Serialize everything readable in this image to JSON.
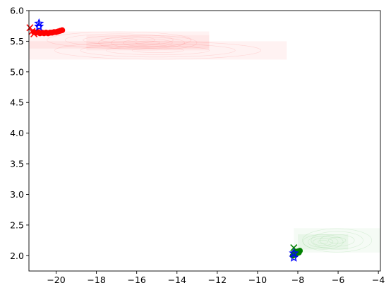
{
  "chart_data": {
    "type": "scatter",
    "title": "",
    "xlabel": "",
    "ylabel": "",
    "xlim": [
      -21.35,
      -3.9
    ],
    "ylim": [
      1.75,
      6.0
    ],
    "grid": false,
    "x_ticks": [
      {
        "value": -20,
        "label": "−20"
      },
      {
        "value": -18,
        "label": "−18"
      },
      {
        "value": -16,
        "label": "−16"
      },
      {
        "value": -14,
        "label": "−14"
      },
      {
        "value": -12,
        "label": "−12"
      },
      {
        "value": -10,
        "label": "−10"
      },
      {
        "value": -8,
        "label": "−8"
      },
      {
        "value": -6,
        "label": "−6"
      },
      {
        "value": -4,
        "label": "−4"
      }
    ],
    "y_ticks": [
      {
        "value": 2.0,
        "label": "2.0"
      },
      {
        "value": 2.5,
        "label": "2.5"
      },
      {
        "value": 3.0,
        "label": "3.0"
      },
      {
        "value": 3.5,
        "label": "3.5"
      },
      {
        "value": 4.0,
        "label": "4.0"
      },
      {
        "value": 4.5,
        "label": "4.5"
      },
      {
        "value": 5.0,
        "label": "5.0"
      },
      {
        "value": 5.5,
        "label": "5.5"
      },
      {
        "value": 6.0,
        "label": "6.0"
      }
    ],
    "colors": {
      "red": "#ff0000",
      "blue": "#0000ff",
      "green": "#008000",
      "red_fill": "#ff0000",
      "green_fill": "#00a000"
    },
    "density_regions": [
      {
        "name": "red-density-band-upper",
        "color": "red_fill",
        "x0": -21.35,
        "x1": -12.4,
        "y0": 5.38,
        "y1": 5.66,
        "opacity": 0.05
      },
      {
        "name": "red-density-band-lower",
        "color": "red_fill",
        "x0": -21.35,
        "x1": -8.55,
        "y0": 5.2,
        "y1": 5.5,
        "opacity": 0.05
      },
      {
        "name": "red-density-core",
        "color": "red_fill",
        "x0": -18.5,
        "x1": -12.4,
        "y0": 5.35,
        "y1": 5.6,
        "opacity": 0.04
      },
      {
        "name": "green-density-band",
        "color": "green_fill",
        "x0": -8.2,
        "x1": -3.9,
        "y0": 2.05,
        "y1": 2.45,
        "opacity": 0.04
      },
      {
        "name": "green-density-core",
        "color": "green_fill",
        "x0": -8.0,
        "x1": -5.5,
        "y0": 2.1,
        "y1": 2.35,
        "opacity": 0.05
      }
    ],
    "series": [
      {
        "name": "red-trajectory",
        "color": "red",
        "marker": "circle",
        "x": [
          -21.1,
          -21.0,
          -20.9,
          -20.8,
          -20.7,
          -20.6,
          -20.5,
          -20.4,
          -20.3,
          -20.2,
          -20.1,
          -20.0,
          -19.9,
          -19.8,
          -19.7
        ],
        "y": [
          5.65,
          5.64,
          5.65,
          5.63,
          5.64,
          5.63,
          5.64,
          5.63,
          5.64,
          5.64,
          5.65,
          5.65,
          5.66,
          5.67,
          5.68
        ]
      },
      {
        "name": "green-trajectory",
        "color": "green",
        "marker": "circle",
        "x": [
          -8.25,
          -8.2,
          -8.15,
          -8.1,
          -8.05,
          -8.0,
          -7.95,
          -7.9
        ],
        "y": [
          2.0,
          2.03,
          2.06,
          2.02,
          2.05,
          2.07,
          2.05,
          2.08
        ]
      },
      {
        "name": "red-x-markers",
        "color": "red",
        "marker": "x",
        "x": [
          -21.3,
          -21.2,
          -21.1
        ],
        "y": [
          5.72,
          5.66,
          5.62
        ]
      },
      {
        "name": "green-x-marker",
        "color": "green",
        "marker": "x",
        "x": [
          -8.2
        ],
        "y": [
          2.13
        ]
      },
      {
        "name": "blue-star-markers",
        "color": "blue",
        "marker": "star",
        "x": [
          -20.85,
          -20.85,
          -8.2,
          -8.2
        ],
        "y": [
          5.79,
          5.74,
          2.04,
          1.97
        ]
      }
    ]
  }
}
